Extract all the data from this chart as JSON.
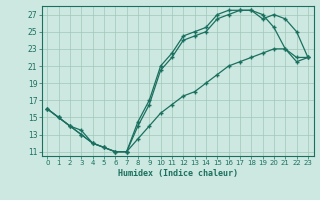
{
  "xlabel": "Humidex (Indice chaleur)",
  "bg_color": "#cde8e0",
  "grid_color": "#a0c8b8",
  "line_color": "#1a7060",
  "xlim": [
    -0.5,
    23.5
  ],
  "ylim": [
    10.5,
    28.0
  ],
  "xticks": [
    0,
    1,
    2,
    3,
    4,
    5,
    6,
    7,
    8,
    9,
    10,
    11,
    12,
    13,
    14,
    15,
    16,
    17,
    18,
    19,
    20,
    21,
    22,
    23
  ],
  "yticks": [
    11,
    13,
    15,
    17,
    19,
    21,
    23,
    25,
    27
  ],
  "line1_x": [
    0,
    1,
    2,
    3,
    4,
    5,
    6,
    7,
    8,
    9,
    10,
    11,
    12,
    13,
    14,
    15,
    16,
    17,
    18,
    19,
    20,
    21,
    22,
    23
  ],
  "line1_y": [
    16,
    15,
    14,
    13,
    12,
    11.5,
    11,
    11,
    14.5,
    17,
    21,
    22.5,
    24.5,
    25,
    25.5,
    27,
    27.5,
    27.5,
    27.5,
    27,
    25.5,
    23,
    21.5,
    22
  ],
  "line2_x": [
    0,
    1,
    2,
    3,
    4,
    5,
    6,
    7,
    8,
    9,
    10,
    11,
    12,
    13,
    14,
    15,
    16,
    17,
    18,
    19,
    20,
    21,
    22,
    23
  ],
  "line2_y": [
    16,
    15,
    14,
    13,
    12,
    11.5,
    11,
    11,
    14,
    16.5,
    20.5,
    22,
    24,
    24.5,
    25,
    26.5,
    27,
    27.5,
    27.5,
    26.5,
    27,
    26.5,
    25,
    22
  ],
  "line3_x": [
    0,
    1,
    2,
    3,
    4,
    5,
    6,
    7,
    8,
    9,
    10,
    11,
    12,
    13,
    14,
    15,
    16,
    17,
    18,
    19,
    20,
    21,
    22,
    23
  ],
  "line3_y": [
    16,
    15,
    14,
    13.5,
    12,
    11.5,
    11,
    11,
    12.5,
    14,
    15.5,
    16.5,
    17.5,
    18,
    19,
    20,
    21,
    21.5,
    22,
    22.5,
    23,
    23,
    22,
    22
  ]
}
